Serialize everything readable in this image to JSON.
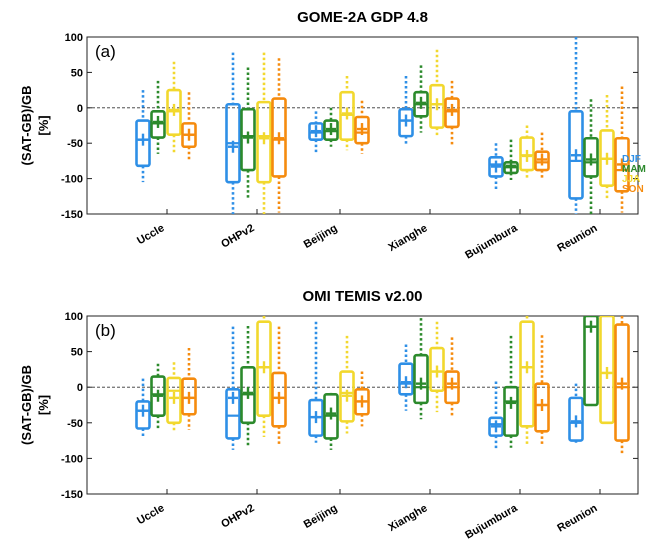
{
  "chart_data": [
    {
      "type": "boxplot",
      "title": "GOME-2A GDP 4.8",
      "panel_label": "(a)",
      "ylabel_line1": "(SAT-GB)/GB",
      "ylabel_line2": "[%]",
      "ylim": [
        -150,
        100
      ],
      "yticks": [
        -150,
        -100,
        -50,
        0,
        50,
        100
      ],
      "grid": false,
      "zero_line": true,
      "legend_placement": "right",
      "categories": [
        "Uccle",
        "OHPv2",
        "Beijing",
        "Xianghe",
        "Bujumbura",
        "Reunion"
      ],
      "series": [
        {
          "name": "DJF",
          "color": "#2e8fe6",
          "boxes": [
            {
              "q1": -82,
              "median": -45,
              "q3": -18,
              "mean": -45,
              "whisker_low": -105,
              "whisker_high": 25
            },
            {
              "q1": -105,
              "median": -50,
              "q3": 5,
              "mean": -55,
              "whisker_low": -150,
              "whisker_high": 78
            },
            {
              "q1": -45,
              "median": -35,
              "q3": -22,
              "mean": -33,
              "whisker_low": -65,
              "whisker_high": -5
            },
            {
              "q1": -40,
              "median": -18,
              "q3": -2,
              "mean": -18,
              "whisker_low": -52,
              "whisker_high": 45
            },
            {
              "q1": -97,
              "median": -80,
              "q3": -70,
              "mean": -83,
              "whisker_low": -115,
              "whisker_high": -50
            },
            {
              "q1": -128,
              "median": -75,
              "q3": -5,
              "mean": -67,
              "whisker_low": -150,
              "whisker_high": 100
            }
          ]
        },
        {
          "name": "MAM",
          "color": "#2c8a2c",
          "boxes": [
            {
              "q1": -42,
              "median": -22,
              "q3": -5,
              "mean": -20,
              "whisker_low": -65,
              "whisker_high": 38
            },
            {
              "q1": -88,
              "median": -40,
              "q3": -2,
              "mean": -42,
              "whisker_low": -130,
              "whisker_high": 57
            },
            {
              "q1": -45,
              "median": -33,
              "q3": -18,
              "mean": -30,
              "whisker_low": -55,
              "whisker_high": 0
            },
            {
              "q1": -12,
              "median": 5,
              "q3": 22,
              "mean": 7,
              "whisker_low": -35,
              "whisker_high": 60
            },
            {
              "q1": -92,
              "median": -84,
              "q3": -77,
              "mean": -82,
              "whisker_low": -102,
              "whisker_high": -45
            },
            {
              "q1": -97,
              "median": -77,
              "q3": -43,
              "mean": -73,
              "whisker_low": -150,
              "whisker_high": 12
            }
          ]
        },
        {
          "name": "JJA",
          "color": "#f2d82e",
          "boxes": [
            {
              "q1": -38,
              "median": -5,
              "q3": 25,
              "mean": -3,
              "whisker_low": -65,
              "whisker_high": 65
            },
            {
              "q1": -105,
              "median": -40,
              "q3": 8,
              "mean": -43,
              "whisker_low": -150,
              "whisker_high": 78
            },
            {
              "q1": -45,
              "median": -10,
              "q3": 22,
              "mean": -8,
              "whisker_low": -60,
              "whisker_high": 45
            },
            {
              "q1": -28,
              "median": 5,
              "q3": 32,
              "mean": 5,
              "whisker_low": -42,
              "whisker_high": 82
            },
            {
              "q1": -88,
              "median": -67,
              "q3": -42,
              "mean": -68,
              "whisker_low": -102,
              "whisker_high": -25
            },
            {
              "q1": -110,
              "median": -72,
              "q3": -32,
              "mean": -72,
              "whisker_low": -130,
              "whisker_high": 18
            }
          ]
        },
        {
          "name": "SON",
          "color": "#f58b0e",
          "boxes": [
            {
              "q1": -55,
              "median": -38,
              "q3": -22,
              "mean": -38,
              "whisker_low": -75,
              "whisker_high": 22
            },
            {
              "q1": -97,
              "median": -45,
              "q3": 13,
              "mean": -43,
              "whisker_low": -148,
              "whisker_high": 70
            },
            {
              "q1": -50,
              "median": -35,
              "q3": -13,
              "mean": -30,
              "whisker_low": -65,
              "whisker_high": 10
            },
            {
              "q1": -27,
              "median": -5,
              "q3": 13,
              "mean": -3,
              "whisker_low": -55,
              "whisker_high": 38
            },
            {
              "q1": -88,
              "median": -77,
              "q3": -62,
              "mean": -73,
              "whisker_low": -100,
              "whisker_high": -35
            },
            {
              "q1": -118,
              "median": -88,
              "q3": -43,
              "mean": -80,
              "whisker_low": -148,
              "whisker_high": 30
            }
          ]
        }
      ]
    },
    {
      "type": "boxplot",
      "title": "OMI TEMIS v2.00",
      "panel_label": "(b)",
      "ylabel_line1": "(SAT-GB)/GB",
      "ylabel_line2": "[%]",
      "ylim": [
        -150,
        100
      ],
      "yticks": [
        -150,
        -100,
        -50,
        0,
        50,
        100
      ],
      "grid": false,
      "zero_line": true,
      "categories": [
        "Uccle",
        "OHPv2",
        "Beijing",
        "Xianghe",
        "Bujumbura",
        "Reunion"
      ],
      "series": [
        {
          "name": "DJF",
          "color": "#2e8fe6",
          "boxes": [
            {
              "q1": -58,
              "median": -33,
              "q3": -20,
              "mean": -33,
              "whisker_low": -72,
              "whisker_high": 12
            },
            {
              "q1": -72,
              "median": -40,
              "q3": -3,
              "mean": -15,
              "whisker_low": -88,
              "whisker_high": 85
            },
            {
              "q1": -68,
              "median": -42,
              "q3": -18,
              "mean": -42,
              "whisker_low": -78,
              "whisker_high": 92
            },
            {
              "q1": -10,
              "median": 5,
              "q3": 33,
              "mean": 7,
              "whisker_low": -33,
              "whisker_high": 60
            },
            {
              "q1": -68,
              "median": -52,
              "q3": -43,
              "mean": -55,
              "whisker_low": -88,
              "whisker_high": 8
            },
            {
              "q1": -75,
              "median": -50,
              "q3": -15,
              "mean": -48,
              "whisker_low": -78,
              "whisker_high": 5
            }
          ]
        },
        {
          "name": "MAM",
          "color": "#2c8a2c",
          "boxes": [
            {
              "q1": -40,
              "median": -10,
              "q3": 15,
              "mean": -12,
              "whisker_low": -58,
              "whisker_high": 33
            },
            {
              "q1": -50,
              "median": -10,
              "q3": 28,
              "mean": -8,
              "whisker_low": -82,
              "whisker_high": 86
            },
            {
              "q1": -72,
              "median": -40,
              "q3": -10,
              "mean": -37,
              "whisker_low": -88,
              "whisker_high": -8
            },
            {
              "q1": -22,
              "median": 0,
              "q3": 45,
              "mean": 5,
              "whisker_low": -45,
              "whisker_high": 97
            },
            {
              "q1": -68,
              "median": -20,
              "q3": 0,
              "mean": -22,
              "whisker_low": -85,
              "whisker_high": 72
            },
            {
              "q1": -25,
              "median": 85,
              "q3": 100,
              "mean": 85,
              "whisker_low": -25,
              "whisker_high": 100
            }
          ]
        },
        {
          "name": "JJA",
          "color": "#f2d82e",
          "boxes": [
            {
              "q1": -50,
              "median": -5,
              "q3": 13,
              "mean": -15,
              "whisker_low": -62,
              "whisker_high": 35
            },
            {
              "q1": -40,
              "median": 28,
              "q3": 92,
              "mean": 28,
              "whisker_low": -70,
              "whisker_high": 100
            },
            {
              "q1": -48,
              "median": -8,
              "q3": 22,
              "mean": -12,
              "whisker_low": -65,
              "whisker_high": 72
            },
            {
              "q1": -5,
              "median": 22,
              "q3": 55,
              "mean": 22,
              "whisker_low": -35,
              "whisker_high": 92
            },
            {
              "q1": -55,
              "median": 28,
              "q3": 92,
              "mean": 28,
              "whisker_low": -80,
              "whisker_high": 100
            },
            {
              "q1": -50,
              "median": 20,
              "q3": 100,
              "mean": 20,
              "whisker_low": -50,
              "whisker_high": 100
            }
          ]
        },
        {
          "name": "SON",
          "color": "#f58b0e",
          "boxes": [
            {
              "q1": -38,
              "median": -15,
              "q3": 12,
              "mean": -15,
              "whisker_low": -60,
              "whisker_high": 55
            },
            {
              "q1": -55,
              "median": -15,
              "q3": 20,
              "mean": -15,
              "whisker_low": -82,
              "whisker_high": 85
            },
            {
              "q1": -38,
              "median": -20,
              "q3": -3,
              "mean": -20,
              "whisker_low": -55,
              "whisker_high": 22
            },
            {
              "q1": -22,
              "median": 0,
              "q3": 22,
              "mean": 5,
              "whisker_low": -40,
              "whisker_high": 70
            },
            {
              "q1": -62,
              "median": -25,
              "q3": 5,
              "mean": -25,
              "whisker_low": -82,
              "whisker_high": 73
            },
            {
              "q1": -75,
              "median": 0,
              "q3": 88,
              "mean": 5,
              "whisker_low": -95,
              "whisker_high": 100
            }
          ]
        }
      ]
    }
  ]
}
